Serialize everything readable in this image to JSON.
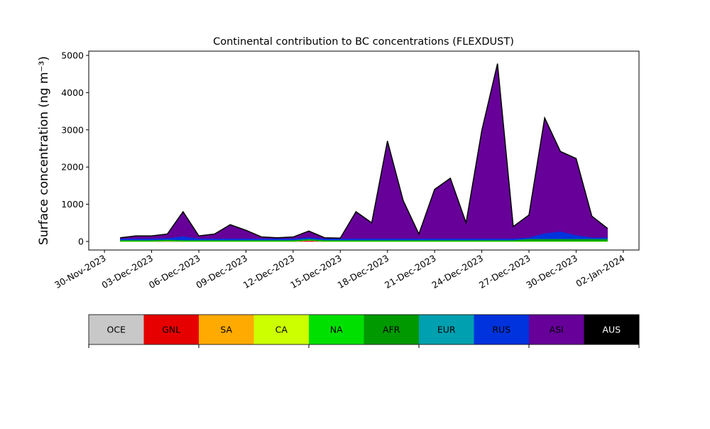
{
  "chart_data": {
    "type": "stacked_area",
    "title": "Continental contribution to BC concentrations (FLEXDUST)",
    "ylabel": "Surface concentration (ng m⁻³)",
    "x": [
      "2023-12-01",
      "2023-12-02",
      "2023-12-03",
      "2023-12-04",
      "2023-12-05",
      "2023-12-06",
      "2023-12-07",
      "2023-12-08",
      "2023-12-09",
      "2023-12-10",
      "2023-12-11",
      "2023-12-12",
      "2023-12-13",
      "2023-12-14",
      "2023-12-15",
      "2023-12-16",
      "2023-12-17",
      "2023-12-18",
      "2023-12-19",
      "2023-12-20",
      "2023-12-21",
      "2023-12-22",
      "2023-12-23",
      "2023-12-24",
      "2023-12-25",
      "2023-12-26",
      "2023-12-27",
      "2023-12-28",
      "2023-12-29",
      "2023-12-30",
      "2023-12-31",
      "2024-01-01"
    ],
    "series": [
      {
        "name": "OCE",
        "color": "#c8c8c8",
        "values": [
          0,
          0,
          0,
          0,
          0,
          0,
          0,
          0,
          0,
          0,
          0,
          0,
          0,
          0,
          0,
          0,
          0,
          0,
          0,
          0,
          0,
          0,
          0,
          0,
          0,
          0,
          0,
          0,
          0,
          0,
          0,
          0
        ]
      },
      {
        "name": "GNL",
        "color": "#e60000",
        "values": [
          0,
          0,
          0,
          10,
          0,
          0,
          0,
          0,
          0,
          0,
          0,
          0,
          30,
          0,
          0,
          0,
          0,
          0,
          0,
          0,
          0,
          0,
          0,
          0,
          0,
          0,
          0,
          0,
          0,
          0,
          0,
          0
        ]
      },
      {
        "name": "SA",
        "color": "#ffaa00",
        "values": [
          0,
          0,
          0,
          0,
          0,
          0,
          0,
          0,
          0,
          0,
          0,
          0,
          0,
          0,
          0,
          0,
          0,
          0,
          0,
          0,
          0,
          0,
          0,
          0,
          0,
          0,
          0,
          0,
          0,
          0,
          0,
          0
        ]
      },
      {
        "name": "CA",
        "color": "#ccff00",
        "values": [
          0,
          0,
          0,
          0,
          0,
          0,
          0,
          0,
          0,
          0,
          0,
          0,
          0,
          0,
          0,
          0,
          0,
          0,
          0,
          0,
          0,
          0,
          0,
          0,
          0,
          0,
          0,
          0,
          0,
          0,
          0,
          0
        ]
      },
      {
        "name": "NA",
        "color": "#00e000",
        "values": [
          15,
          15,
          15,
          15,
          15,
          15,
          15,
          15,
          15,
          15,
          15,
          15,
          15,
          15,
          15,
          15,
          15,
          15,
          15,
          15,
          15,
          15,
          15,
          15,
          15,
          15,
          15,
          15,
          15,
          15,
          15,
          15
        ]
      },
      {
        "name": "AFR",
        "color": "#009900",
        "values": [
          20,
          20,
          20,
          20,
          20,
          20,
          20,
          20,
          20,
          20,
          20,
          20,
          20,
          20,
          20,
          20,
          20,
          20,
          20,
          20,
          20,
          20,
          20,
          20,
          20,
          20,
          50,
          50,
          50,
          50,
          50,
          50
        ]
      },
      {
        "name": "EUR",
        "color": "#00a0b0",
        "values": [
          5,
          5,
          5,
          5,
          5,
          5,
          5,
          5,
          5,
          5,
          5,
          5,
          5,
          5,
          5,
          5,
          5,
          5,
          5,
          5,
          5,
          5,
          5,
          5,
          5,
          5,
          5,
          5,
          5,
          5,
          5,
          5
        ]
      },
      {
        "name": "RUS",
        "color": "#0033dd",
        "values": [
          40,
          40,
          40,
          40,
          100,
          40,
          40,
          40,
          40,
          40,
          40,
          40,
          40,
          40,
          40,
          40,
          40,
          40,
          40,
          40,
          40,
          40,
          40,
          40,
          40,
          40,
          40,
          150,
          200,
          100,
          40,
          40
        ]
      },
      {
        "name": "ASI",
        "color": "#660099",
        "values": [
          20,
          70,
          70,
          110,
          660,
          70,
          120,
          370,
          220,
          40,
          20,
          40,
          170,
          20,
          10,
          720,
          420,
          2620,
          1020,
          120,
          1320,
          1620,
          420,
          2900,
          4700,
          320,
          600,
          3100,
          2150,
          2060,
          570,
          240
        ]
      },
      {
        "name": "AUS",
        "color": "#000000",
        "values": [
          0,
          0,
          0,
          0,
          0,
          0,
          0,
          0,
          0,
          0,
          0,
          0,
          0,
          0,
          0,
          0,
          0,
          0,
          0,
          0,
          0,
          0,
          0,
          0,
          0,
          0,
          0,
          0,
          0,
          0,
          0,
          0
        ]
      }
    ],
    "xlim": [
      "2023-11-29",
      "2024-01-03"
    ],
    "xticks": [
      {
        "value": "2023-11-30",
        "label": "30-Nov-2023"
      },
      {
        "value": "2023-12-03",
        "label": "03-Dec-2023"
      },
      {
        "value": "2023-12-06",
        "label": "06-Dec-2023"
      },
      {
        "value": "2023-12-09",
        "label": "09-Dec-2023"
      },
      {
        "value": "2023-12-12",
        "label": "12-Dec-2023"
      },
      {
        "value": "2023-12-15",
        "label": "15-Dec-2023"
      },
      {
        "value": "2023-12-18",
        "label": "18-Dec-2023"
      },
      {
        "value": "2023-12-21",
        "label": "21-Dec-2023"
      },
      {
        "value": "2023-12-24",
        "label": "24-Dec-2023"
      },
      {
        "value": "2023-12-27",
        "label": "27-Dec-2023"
      },
      {
        "value": "2023-12-30",
        "label": "30-Dec-2023"
      },
      {
        "value": "2024-01-02",
        "label": "02-Jan-2024"
      }
    ],
    "ylim": [
      -230,
      5115
    ],
    "yticks": [
      0,
      1000,
      2000,
      3000,
      4000,
      5000
    ],
    "legend": "colorbar-below"
  }
}
